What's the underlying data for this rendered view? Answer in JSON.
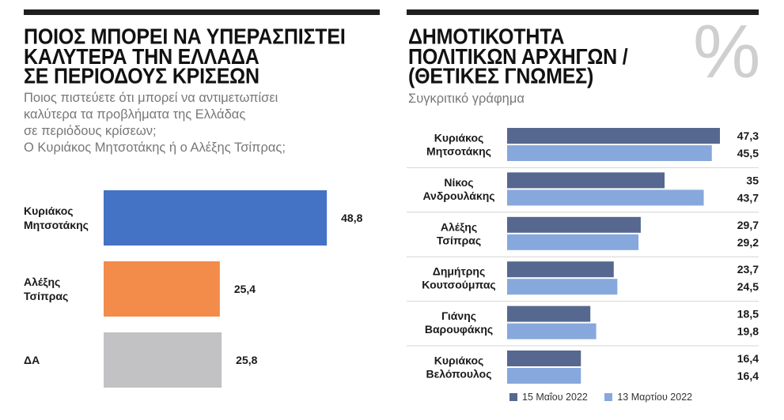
{
  "chart_data": [
    {
      "type": "bar",
      "orientation": "horizontal",
      "title": "ΠΟΙΟΣ ΜΠΟΡΕΙ ΝΑ ΥΠΕΡΑΣΠΙΣΤΕΙ\nΚΑΛΥΤΕΡΑ ΤΗΝ ΕΛΛΑΔΑ\nΣΕ ΠΕΡΙΟΔΟΥΣ ΚΡΙΣΕΩΝ",
      "subtitle": "Ποιος πιστεύετε ότι μπορεί να αντιμετωπίσει\nκαλύτερα τα προβλήματα της Ελλάδας\nσε περιόδους κρίσεων;\nΟ Κυριάκος Μητσοτάκης ή ο Αλέξης Τσίπρας;",
      "categories": [
        "Κυριάκος\nΜητσοτάκης",
        "Αλέξης\nΤσίπρας",
        "ΔΑ"
      ],
      "values": [
        48.8,
        25.4,
        25.8
      ],
      "value_labels": [
        "48,8",
        "25,4",
        "25,8"
      ],
      "colors": [
        "#4472c4",
        "#f38b4a",
        "#c2c2c4"
      ],
      "xlim": [
        0,
        55
      ]
    },
    {
      "type": "bar",
      "orientation": "horizontal",
      "title": "ΔΗΜΟΤΙΚΟΤΗΤΑ\nΠΟΛΙΤΙΚΩΝ ΑΡΧΗΓΩΝ /\n(ΘΕΤΙΚΕΣ ΓΝΩΜΕΣ)",
      "subtitle": "Συγκριτικό γράφημα",
      "badge": "%",
      "categories": [
        "Κυριάκος\nΜητσοτάκης",
        "Νίκος\nΑνδρουλάκης",
        "Αλέξης\nΤσίπρας",
        "Δημήτρης\nΚουτσούμπας",
        "Γιάνης\nΒαρουφάκης",
        "Κυριάκος\nΒελόπουλος"
      ],
      "series": [
        {
          "name": "15 Μαΐου 2022",
          "color": "#56688f",
          "values": [
            47.3,
            35,
            29.7,
            23.7,
            18.5,
            16.4
          ],
          "value_labels": [
            "47,3",
            "35",
            "29,7",
            "23,7",
            "18,5",
            "16,4"
          ]
        },
        {
          "name": "13 Μαρτίου 2022",
          "color": "#87a8dc",
          "values": [
            45.5,
            43.7,
            29.2,
            24.5,
            19.8,
            16.4
          ],
          "value_labels": [
            "45,5",
            "43,7",
            "29,2",
            "24,5",
            "19,8",
            "16,4"
          ]
        }
      ],
      "xlim": [
        0,
        48
      ]
    }
  ]
}
